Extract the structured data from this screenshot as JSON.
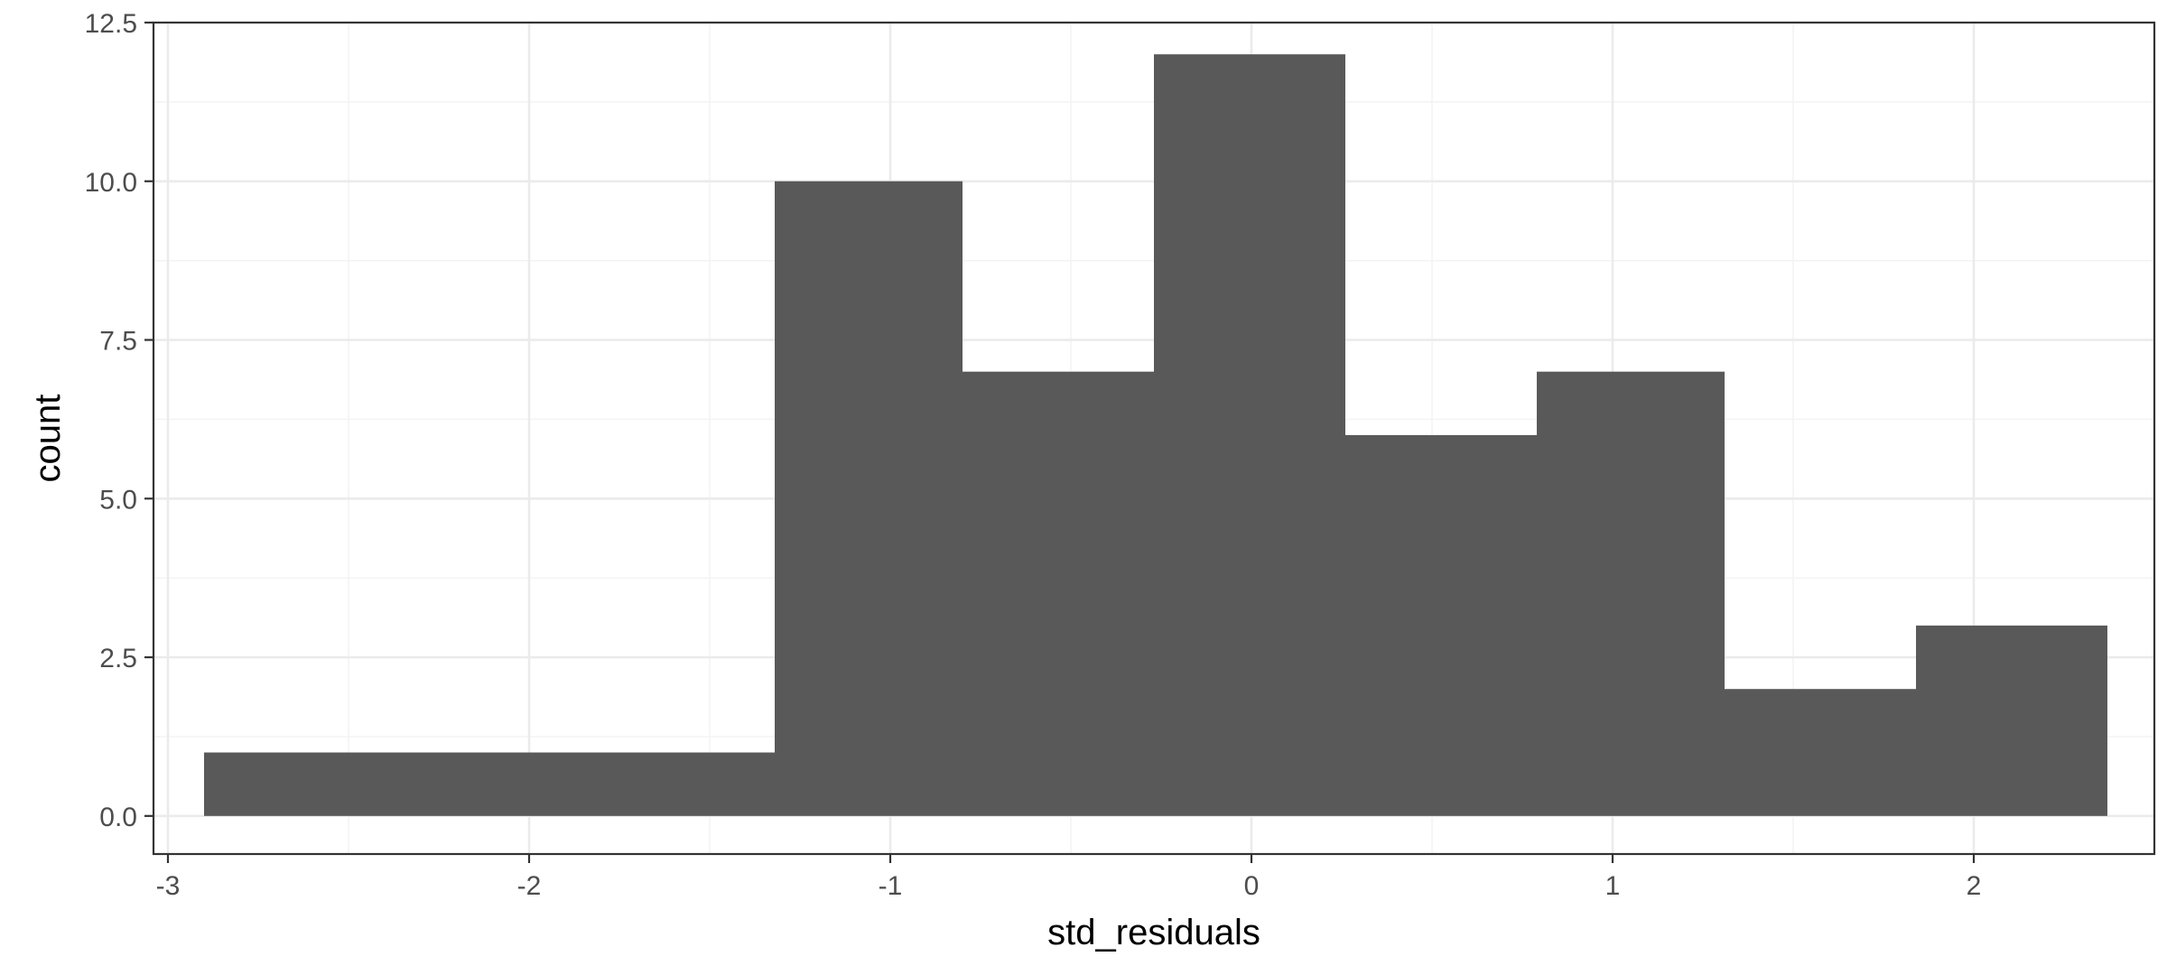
{
  "chart_data": {
    "type": "bar",
    "histogram": true,
    "xlabel": "std_residuals",
    "ylabel": "count",
    "xlim": [
      -3.04,
      2.5
    ],
    "ylim": [
      -0.6,
      12.5
    ],
    "x_ticks": [
      -3,
      -2,
      -1,
      0,
      1,
      2
    ],
    "x_tick_labels": [
      "-3",
      "-2",
      "-1",
      "0",
      "1",
      "2"
    ],
    "y_ticks": [
      0,
      2.5,
      5,
      7.5,
      10,
      12.5
    ],
    "y_tick_labels": [
      "0.0",
      "2.5",
      "5.0",
      "7.5",
      "10.0",
      "12.5"
    ],
    "bins": [
      {
        "x_start": -2.9,
        "x_end": -1.32,
        "count": 1
      },
      {
        "x_start": -1.32,
        "x_end": -0.8,
        "count": 10
      },
      {
        "x_start": -0.8,
        "x_end": -0.27,
        "count": 7
      },
      {
        "x_start": -0.27,
        "x_end": 0.26,
        "count": 12
      },
      {
        "x_start": 0.26,
        "x_end": 0.79,
        "count": 6
      },
      {
        "x_start": 0.79,
        "x_end": 1.31,
        "count": 7
      },
      {
        "x_start": 1.31,
        "x_end": 1.84,
        "count": 2
      },
      {
        "x_start": 1.84,
        "x_end": 2.37,
        "count": 3
      }
    ],
    "bar_color": "#595959",
    "grid": true,
    "theme": "bw"
  }
}
